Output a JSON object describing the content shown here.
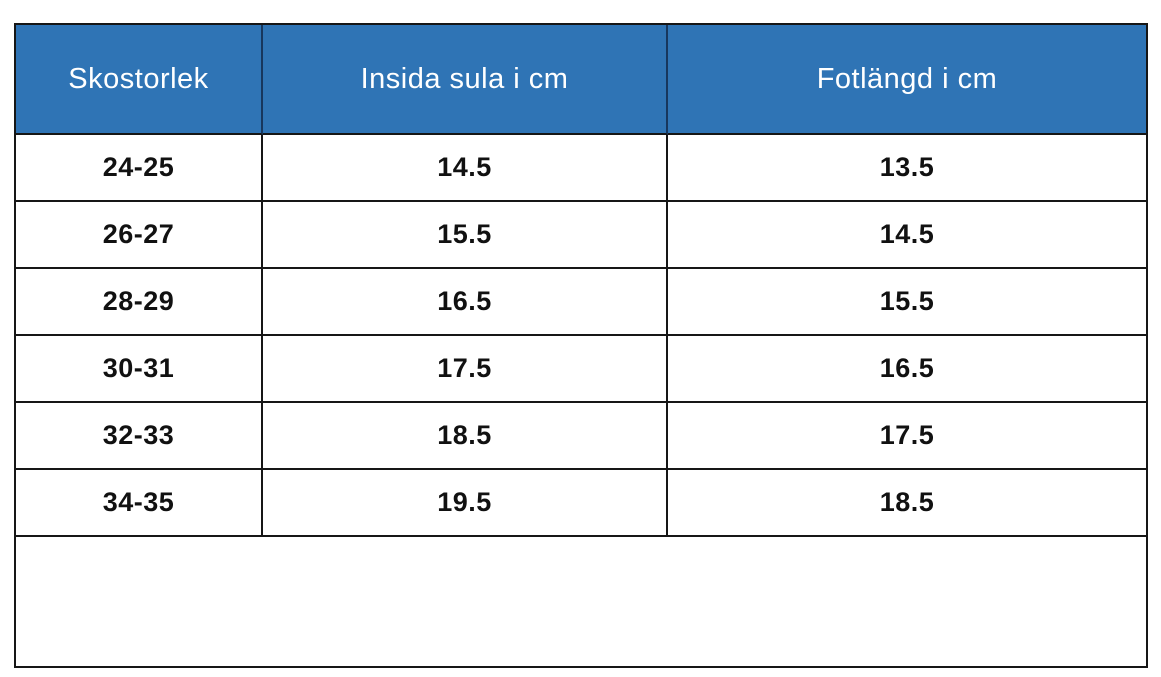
{
  "chart_data": {
    "type": "table",
    "title": "Shoe size conversion table (Swedish)",
    "columns": [
      "Skostorlek",
      "Insida sula i cm",
      "Fotlängd i cm"
    ],
    "rows": [
      [
        "24-25",
        "14.5",
        "13.5"
      ],
      [
        "26-27",
        "15.5",
        "14.5"
      ],
      [
        "28-29",
        "16.5",
        "15.5"
      ],
      [
        "30-31",
        "17.5",
        "16.5"
      ],
      [
        "32-33",
        "18.5",
        "17.5"
      ],
      [
        "34-35",
        "19.5",
        "18.5"
      ]
    ],
    "layout_hints": {
      "header_background": "blue",
      "header_text_color": "white",
      "body_text_style": "bold black, centered",
      "empty_footer_row": true
    }
  },
  "colors": {
    "header_bg": "#2f74b5",
    "header_text": "#ffffff",
    "border": "#161616"
  }
}
